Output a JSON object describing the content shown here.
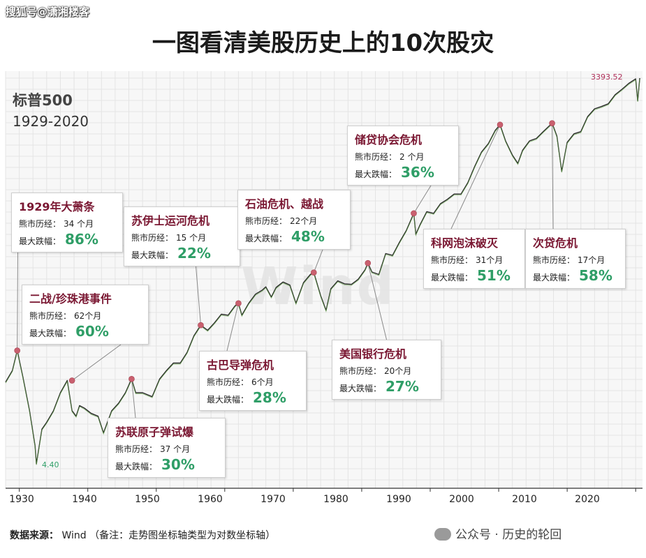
{
  "watermark_top": "搜狐号@潇湘楼客",
  "title": "一图看清美股历史上的10次股灾",
  "index_name": "标普500",
  "date_range": "1929-2020",
  "center_watermark": "Wind",
  "low_label": "4.40",
  "high_label": "3393.52",
  "source": {
    "label": "数据来源：",
    "value": "Wind",
    "note": "（备注：走势图坐标轴类型为对数坐标轴）"
  },
  "watermark_bottom": "公众号 · 历史的轮回",
  "bear_label": "熊市历经：",
  "drop_label": "最大跌幅：",
  "events": [
    {
      "title": "1929年大萧条",
      "duration": "34 个月",
      "drop": "86%"
    },
    {
      "title": "二战/珍珠港事件",
      "duration": "62个月",
      "drop": "60%"
    },
    {
      "title": "苏伊士运河危机",
      "duration": "15 个月",
      "drop": "22%"
    },
    {
      "title": "苏联原子弹试爆",
      "duration": "37 个月",
      "drop": "30%"
    },
    {
      "title": "古巴导弹危机",
      "duration": "6个月",
      "drop": "28%"
    },
    {
      "title": "石油危机、越战",
      "duration": "22个月",
      "drop": "48%"
    },
    {
      "title": "美国银行危机",
      "duration": "20个月",
      "drop": "27%"
    },
    {
      "title": "储贷协会危机",
      "duration": "2 个月",
      "drop": "36%"
    },
    {
      "title": "科网泡沫破灭",
      "duration": "31个月",
      "drop": "51%"
    },
    {
      "title": "次贷危机",
      "duration": "17个月",
      "drop": "58%"
    }
  ],
  "chart_data": {
    "type": "line",
    "title": "一图看清美股历史上的10次股灾",
    "y_scale": "log",
    "xlim": [
      1928,
      2021
    ],
    "x_ticks": [
      1930,
      1940,
      1950,
      1960,
      1970,
      1980,
      1990,
      2000,
      2010,
      2020
    ],
    "grid": true,
    "series": [
      {
        "name": "标普500",
        "x": [
          1928.0,
          1929.0,
          1929.7,
          1930.5,
          1931.5,
          1932.3,
          1932.5,
          1933.3,
          1934.0,
          1935.0,
          1936.0,
          1937.0,
          1937.7,
          1938.3,
          1938.8,
          1939.5,
          1940.5,
          1941.5,
          1942.3,
          1943.5,
          1944.5,
          1945.5,
          1946.4,
          1947.0,
          1948.0,
          1949.4,
          1950.5,
          1951.5,
          1952.5,
          1953.5,
          1954.5,
          1955.5,
          1956.5,
          1957.5,
          1958.5,
          1959.5,
          1960.5,
          1961.5,
          1962.0,
          1962.5,
          1963.5,
          1964.5,
          1965.5,
          1966.0,
          1966.8,
          1967.5,
          1968.5,
          1969.5,
          1970.4,
          1971.5,
          1972.5,
          1973.0,
          1974.0,
          1974.8,
          1975.5,
          1976.5,
          1977.5,
          1978.5,
          1979.5,
          1980.5,
          1980.9,
          1981.5,
          1982.5,
          1983.5,
          1984.5,
          1985.5,
          1986.5,
          1987.6,
          1987.9,
          1988.5,
          1989.5,
          1990.5,
          1991.5,
          1992.5,
          1993.5,
          1994.5,
          1995.5,
          1996.5,
          1997.5,
          1998.5,
          1999.5,
          2000.2,
          2001.0,
          2002.0,
          2002.8,
          2003.5,
          2004.5,
          2005.5,
          2006.5,
          2007.8,
          2008.5,
          2009.2,
          2010.0,
          2011.0,
          2012.0,
          2013.0,
          2014.0,
          2015.0,
          2016.0,
          2017.0,
          2018.0,
          2019.0,
          2020.0,
          2020.3,
          2020.6
        ],
        "values": [
          18,
          22,
          31,
          20,
          11,
          6,
          4.4,
          8,
          9,
          11,
          15,
          18.5,
          11,
          10,
          12,
          11.5,
          10.5,
          10,
          7.5,
          11,
          12.5,
          15,
          19,
          15,
          15,
          14,
          19,
          22,
          25,
          25,
          30,
          40,
          48,
          44,
          50,
          58,
          57,
          67,
          70,
          57,
          70,
          82,
          88,
          93,
          78,
          92,
          101,
          96,
          70,
          100,
          115,
          119,
          80,
          62,
          90,
          103,
          98,
          97,
          106,
          125,
          140,
          120,
          115,
          165,
          160,
          200,
          245,
          330,
          230,
          270,
          340,
          330,
          390,
          420,
          460,
          460,
          560,
          740,
          950,
          1100,
          1380,
          1520,
          1150,
          900,
          780,
          980,
          1150,
          1200,
          1350,
          1560,
          1250,
          680,
          1120,
          1300,
          1350,
          1750,
          2000,
          2080,
          2180,
          2550,
          2800,
          3100,
          3350,
          2300,
          3393.52
        ]
      }
    ]
  }
}
